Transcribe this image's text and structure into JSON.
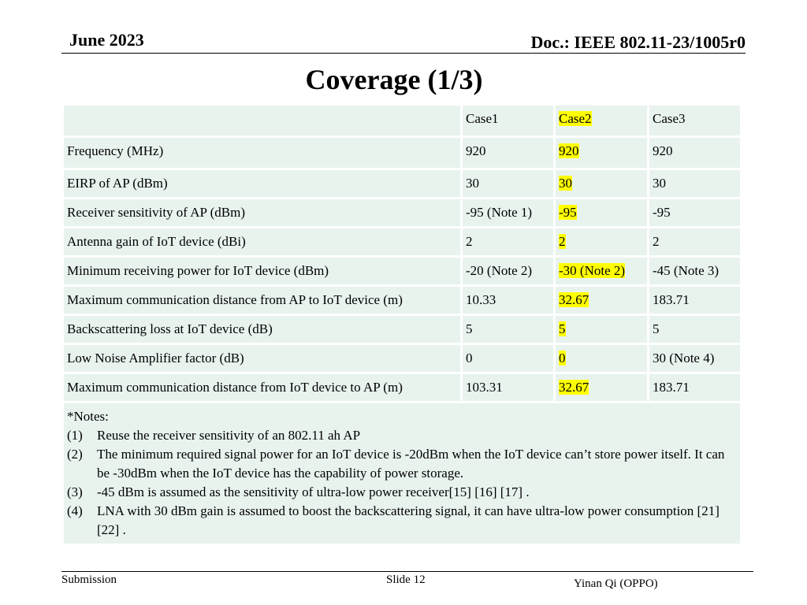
{
  "header": {
    "date": "June 2023",
    "doc_id": "Doc.: IEEE 802.11-23/1005r0"
  },
  "title": "Coverage (1/3)",
  "table": {
    "columns": [
      "",
      "Case1",
      "Case2",
      "Case3"
    ],
    "highlight_column": "Case2",
    "highlight_color": "#ffff00",
    "cell_background": "#e8f3ee",
    "rows": [
      [
        "Frequency (MHz)",
        "920",
        "920",
        "920"
      ],
      [
        "EIRP of AP (dBm)",
        "30",
        "30",
        "30"
      ],
      [
        "Receiver sensitivity of AP (dBm)",
        "-95 (Note 1)",
        "-95",
        "-95"
      ],
      [
        "Antenna gain of IoT device (dBi)",
        "2",
        "2",
        "2"
      ],
      [
        "Minimum receiving power for IoT device (dBm)",
        "-20 (Note 2)",
        "-30 (Note 2)",
        "-45 (Note 3)"
      ],
      [
        "Maximum communication distance from AP to IoT device (m)",
        "10.33",
        "32.67",
        "183.71"
      ],
      [
        "Backscattering loss at IoT device (dB)",
        "5",
        "5",
        "5"
      ],
      [
        "Low Noise Amplifier factor (dB)",
        "0",
        "0",
        "30 (Note 4)"
      ],
      [
        "Maximum communication distance from IoT device to AP (m)",
        "103.31",
        "32.67",
        "183.71"
      ]
    ],
    "notes_title": "*Notes:",
    "notes": [
      {
        "num": "(1)",
        "text": "Reuse the receiver sensitivity of an 802.11 ah AP"
      },
      {
        "num": "(2)",
        "text": "The minimum required signal power for an IoT device is -20dBm when the IoT device can’t store power itself. It can be -30dBm when the IoT device has the capability of power storage."
      },
      {
        "num": "(3)",
        "text": "-45 dBm is assumed as the sensitivity of ultra-low power receiver[15] [16] [17] ."
      },
      {
        "num": "(4)",
        "text": "LNA with 30 dBm gain is assumed to boost the backscattering signal, it can have ultra-low power consumption [21] [22] ."
      }
    ]
  },
  "footer": {
    "left": "Submission",
    "center": "Slide 12",
    "right": "Yinan Qi (OPPO)"
  }
}
